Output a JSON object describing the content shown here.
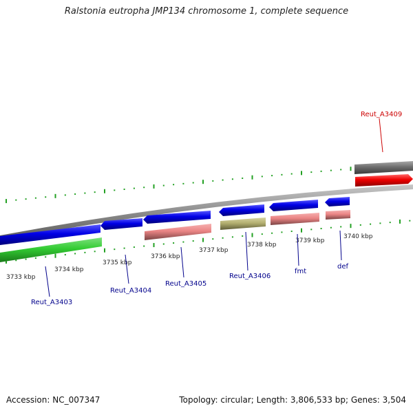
{
  "title": "Ralstonia eutropha JMP134 chromosome 1, complete sequence",
  "footer": {
    "accession": "Accession: NC_007347",
    "topology": "Topology: circular; Length: 3,806,533 bp; Genes: 3,504"
  },
  "colors": {
    "backbone": "#8c8c8c",
    "tick": "#22a022",
    "cds_blue": "#0000e6",
    "cds_green": "#33cc33",
    "cds_pink": "#ea8484",
    "cds_olive": "#b4b070",
    "cds_red": "#ee0000",
    "cds_gray": "#6e6e6e",
    "label_blue": "#00008b",
    "label_red": "#cc0000"
  },
  "scale": {
    "tick_labels": [
      {
        "text": "3733 kbp"
      },
      {
        "text": "3734 kbp"
      },
      {
        "text": "3735 kbp"
      },
      {
        "text": "3736 kbp"
      },
      {
        "text": "3737 kbp"
      },
      {
        "text": "3738 kbp"
      },
      {
        "text": "3739 kbp"
      },
      {
        "text": "3740 kbp"
      }
    ]
  },
  "genes": [
    {
      "label": "Reut_A3403",
      "color": "blue"
    },
    {
      "label": "Reut_A3404",
      "color": "blue"
    },
    {
      "label": "Reut_A3405",
      "color": "blue"
    },
    {
      "label": "Reut_A3406",
      "color": "blue"
    },
    {
      "label": "fmt",
      "color": "blue"
    },
    {
      "label": "def",
      "color": "blue"
    },
    {
      "label": "Reut_A3409",
      "color": "red"
    }
  ]
}
